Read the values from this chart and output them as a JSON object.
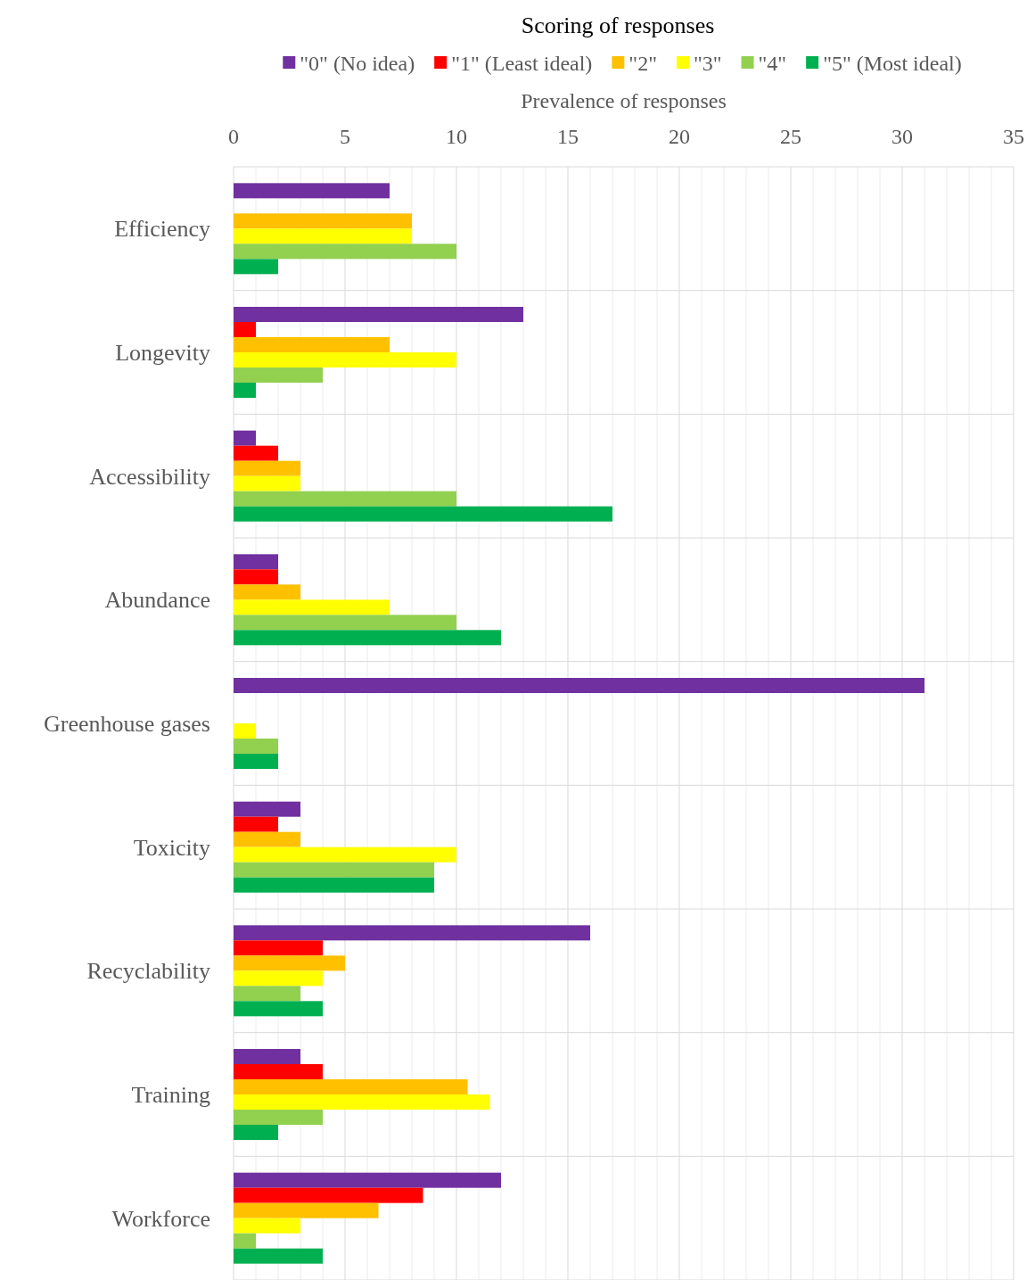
{
  "chart_data": {
    "type": "bar",
    "orientation": "horizontal",
    "legend_title": "Scoring of responses",
    "xlabel": "Prevalence of responses",
    "categories": [
      "Efficiency",
      "Longevity",
      "Accessibility",
      "Abundance",
      "Greenhouse gases",
      "Toxicity",
      "Recyclability",
      "Training",
      "Workforce"
    ],
    "series": [
      {
        "name": "\"0\" (No idea)",
        "color": "#7030a0",
        "values": [
          7,
          13,
          1,
          2,
          31,
          3,
          16,
          3,
          12
        ]
      },
      {
        "name": "\"1\" (Least ideal)",
        "color": "#ff0000",
        "values": [
          0,
          1,
          2,
          2,
          0,
          2,
          4,
          4,
          8.5
        ]
      },
      {
        "name": "\"2\"",
        "color": "#ffc000",
        "values": [
          8,
          7,
          3,
          3,
          0,
          3,
          5,
          10.5,
          6.5
        ]
      },
      {
        "name": "\"3\"",
        "color": "#ffff00",
        "values": [
          8,
          10,
          3,
          7,
          1,
          10,
          4,
          11.5,
          3
        ]
      },
      {
        "name": "\"4\"",
        "color": "#92d050",
        "values": [
          10,
          4,
          10,
          10,
          2,
          9,
          3,
          4,
          1
        ]
      },
      {
        "name": "\"5\" (Most ideal)",
        "color": "#00b050",
        "values": [
          2,
          1,
          17,
          12,
          2,
          9,
          4,
          2,
          4
        ]
      }
    ],
    "xlim": [
      0,
      35
    ],
    "xticks": [
      0,
      {
        "value": 1,
        "label": null
      },
      {
        "value": 2,
        "label": null
      },
      {
        "value": 3,
        "label": null
      },
      {
        "value": 4,
        "label": null
      },
      5,
      {
        "value": 6,
        "label": null
      },
      {
        "value": 7,
        "label": null
      },
      {
        "value": 8,
        "label": null
      },
      {
        "value": 9,
        "label": null
      },
      10,
      {
        "value": 11,
        "label": null
      },
      {
        "value": 12,
        "label": null
      },
      {
        "value": 13,
        "label": null
      },
      {
        "value": 14,
        "label": null
      },
      15,
      {
        "value": 16,
        "label": null
      },
      {
        "value": 17,
        "label": null
      },
      {
        "value": 18,
        "label": null
      },
      {
        "value": 19,
        "label": null
      },
      20,
      {
        "value": 21,
        "label": null
      },
      {
        "value": 22,
        "label": null
      },
      {
        "value": 23,
        "label": null
      },
      {
        "value": 24,
        "label": null
      },
      25,
      {
        "value": 26,
        "label": null
      },
      {
        "value": 27,
        "label": null
      },
      {
        "value": 28,
        "label": null
      },
      {
        "value": 29,
        "label": null
      },
      30,
      {
        "value": 31,
        "label": null
      },
      {
        "value": 32,
        "label": null
      },
      {
        "value": 33,
        "label": null
      },
      {
        "value": 34,
        "label": null
      },
      35
    ],
    "grid": true,
    "legend": "top"
  }
}
